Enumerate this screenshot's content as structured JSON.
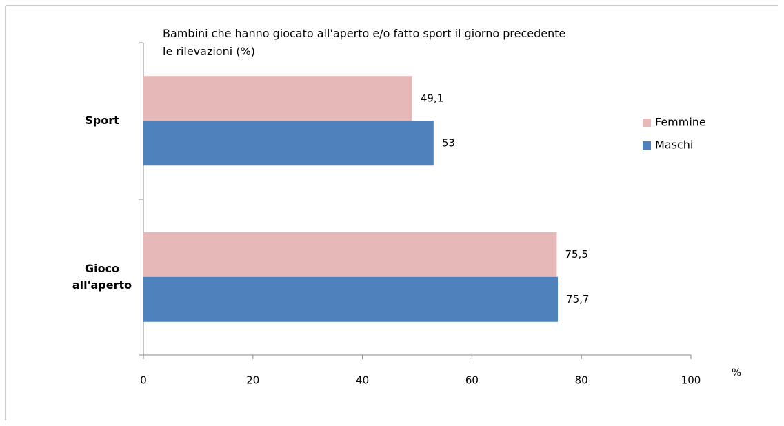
{
  "chart_data": {
    "type": "hbar",
    "title": [
      "Bambini  che hanno giocato all'aperto e/o fatto sport il giorno precedente",
      "le rilevazioni (%)"
    ],
    "categories": [
      "Sport",
      "Gioco all'aperto"
    ],
    "series": [
      {
        "name": "Femmine",
        "color": "#e6b9b8",
        "values": [
          49.1,
          75.5
        ],
        "value_labels": [
          "49,1",
          "75,5"
        ]
      },
      {
        "name": "Maschi",
        "color": "#4f81bd",
        "values": [
          53,
          75.7
        ],
        "value_labels": [
          "53",
          "75,7"
        ]
      }
    ],
    "x_label": "%",
    "xlim": [
      0,
      100
    ],
    "xticks": [
      0,
      20,
      40,
      60,
      80,
      100
    ],
    "value_label_color": "#ff0000"
  }
}
